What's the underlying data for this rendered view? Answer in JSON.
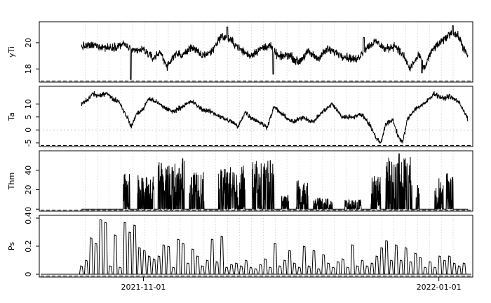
{
  "chart_data": [
    {
      "type": "line",
      "ylabel": "yTi",
      "ylim": [
        17.0,
        21.6
      ],
      "yticks": [
        18,
        20
      ],
      "x_range_days": [
        -21.5,
        68.0
      ],
      "hline": null,
      "color": "#000000",
      "anchors": [
        [
          -12.8,
          19.7
        ],
        [
          -10,
          19.8
        ],
        [
          -7,
          19.6
        ],
        [
          -4,
          19.9
        ],
        [
          -2,
          19.3
        ],
        [
          0,
          19.5
        ],
        [
          2,
          18.8
        ],
        [
          3.5,
          19.3
        ],
        [
          5,
          18.1
        ],
        [
          6.5,
          19.2
        ],
        [
          8,
          19.0
        ],
        [
          10,
          19.7
        ],
        [
          12,
          19.0
        ],
        [
          14,
          19.3
        ],
        [
          16,
          20.5
        ],
        [
          18,
          20.2
        ],
        [
          20,
          19.5
        ],
        [
          22,
          19.0
        ],
        [
          24,
          19.5
        ],
        [
          26,
          19.8
        ],
        [
          28,
          18.9
        ],
        [
          30,
          19.1
        ],
        [
          32,
          18.5
        ],
        [
          34,
          19.3
        ],
        [
          36,
          18.8
        ],
        [
          38,
          19.5
        ],
        [
          40,
          19.2
        ],
        [
          42,
          18.9
        ],
        [
          44,
          18.7
        ],
        [
          46,
          19.6
        ],
        [
          48,
          20.1
        ],
        [
          50,
          19.5
        ],
        [
          52,
          19.8
        ],
        [
          54,
          18.8
        ],
        [
          55,
          18.0
        ],
        [
          56,
          18.6
        ],
        [
          57,
          19.0
        ],
        [
          58,
          18.0
        ],
        [
          59,
          19.0
        ],
        [
          60,
          19.6
        ],
        [
          62,
          20.2
        ],
        [
          63.5,
          20.8
        ],
        [
          65,
          20.5
        ],
        [
          66,
          19.7
        ],
        [
          67,
          18.9
        ]
      ],
      "specials": [
        [
          -2.6,
          17.2
        ],
        [
          17.3,
          21.2
        ],
        [
          26.8,
          17.6
        ],
        [
          45.5,
          20.4
        ],
        [
          57.5,
          17.7
        ],
        [
          63.9,
          21.3
        ]
      ]
    },
    {
      "type": "line",
      "ylabel": "Ta",
      "ylim": [
        -6.4,
        16.8
      ],
      "yticks": [
        -5,
        0,
        5,
        10
      ],
      "x_range_days": [
        -21.5,
        68.0
      ],
      "hline": 0,
      "color": "#000000",
      "anchors": [
        [
          -12.8,
          10
        ],
        [
          -11.5,
          11.5
        ],
        [
          -10.5,
          14
        ],
        [
          -9,
          13
        ],
        [
          -7.5,
          14.5
        ],
        [
          -6.5,
          12
        ],
        [
          -5,
          11
        ],
        [
          -4,
          7
        ],
        [
          -3.2,
          4.5
        ],
        [
          -2.5,
          1
        ],
        [
          -1.5,
          6
        ],
        [
          0,
          8
        ],
        [
          1,
          12
        ],
        [
          2.5,
          11
        ],
        [
          4,
          9
        ],
        [
          6,
          7
        ],
        [
          8,
          9
        ],
        [
          10,
          11
        ],
        [
          12,
          8
        ],
        [
          14,
          7
        ],
        [
          16,
          5
        ],
        [
          17,
          4
        ],
        [
          18.5,
          3
        ],
        [
          19.5,
          1
        ],
        [
          21,
          7
        ],
        [
          22,
          5
        ],
        [
          24,
          3
        ],
        [
          25.5,
          1
        ],
        [
          27,
          9
        ],
        [
          28,
          7
        ],
        [
          30,
          4
        ],
        [
          31,
          3
        ],
        [
          33,
          5
        ],
        [
          35,
          3
        ],
        [
          37,
          7
        ],
        [
          39,
          10
        ],
        [
          41,
          5
        ],
        [
          43,
          5
        ],
        [
          45,
          6
        ],
        [
          46,
          4
        ],
        [
          47,
          1
        ],
        [
          48,
          -3
        ],
        [
          49,
          -5
        ],
        [
          50,
          2
        ],
        [
          51.5,
          4
        ],
        [
          52.5,
          -2
        ],
        [
          53.5,
          -5
        ],
        [
          54.5,
          4
        ],
        [
          56,
          8
        ],
        [
          58,
          10
        ],
        [
          60,
          14
        ],
        [
          62,
          12
        ],
        [
          63,
          13
        ],
        [
          65,
          11
        ],
        [
          66,
          8
        ],
        [
          67,
          4
        ]
      ]
    },
    {
      "type": "line",
      "ylabel": "Thm",
      "ylim": [
        -2.0,
        60.0
      ],
      "yticks": [
        0,
        20,
        40
      ],
      "x_range_days": [
        -21.5,
        68.0
      ],
      "hline": null,
      "color": "#000000",
      "bursts": [
        [
          -4.2,
          -2.8,
          40
        ],
        [
          -1.2,
          2.2,
          35
        ],
        [
          3,
          8.5,
          50
        ],
        [
          9.5,
          12.5,
          38
        ],
        [
          15.5,
          21,
          45
        ],
        [
          22.5,
          27,
          50
        ],
        [
          28.5,
          30,
          15
        ],
        [
          31.5,
          34,
          30
        ],
        [
          35,
          39,
          12
        ],
        [
          41.5,
          45,
          10
        ],
        [
          47,
          49,
          35
        ],
        [
          50,
          55.5,
          55
        ],
        [
          56.3,
          57,
          25
        ],
        [
          60,
          62,
          32
        ],
        [
          62.5,
          64,
          38
        ]
      ],
      "spikes": [
        [
          8.1,
          52
        ],
        [
          26.2,
          50
        ],
        [
          52.8,
          57
        ]
      ]
    },
    {
      "type": "bar",
      "ylabel": "Ps",
      "ylim": [
        -0.02,
        0.42
      ],
      "yticks": [
        0.0,
        0.2,
        0.4
      ],
      "x_range_days": [
        -21.5,
        68.0
      ],
      "hline": null,
      "color": "#000000",
      "bars": [
        [
          -12.8,
          0.06
        ],
        [
          -11.8,
          0.1
        ],
        [
          -10.8,
          0.26
        ],
        [
          -9.8,
          0.22
        ],
        [
          -8.8,
          0.39
        ],
        [
          -7.8,
          0.37
        ],
        [
          -6.8,
          0.06
        ],
        [
          -5.8,
          0.28
        ],
        [
          -4.8,
          0.05
        ],
        [
          -3.8,
          0.37
        ],
        [
          -2.8,
          0.3
        ],
        [
          -1.8,
          0.35
        ],
        [
          -0.8,
          0.19
        ],
        [
          0.2,
          0.17
        ],
        [
          1.2,
          0.13
        ],
        [
          2.2,
          0.11
        ],
        [
          3.2,
          0.13
        ],
        [
          4.2,
          0.21
        ],
        [
          5.2,
          0.2
        ],
        [
          6.2,
          0.05
        ],
        [
          7.2,
          0.25
        ],
        [
          8.2,
          0.22
        ],
        [
          9.2,
          0.08
        ],
        [
          10.2,
          0.18
        ],
        [
          11.2,
          0.13
        ],
        [
          12.2,
          0.06
        ],
        [
          13.2,
          0.1
        ],
        [
          14.2,
          0.25
        ],
        [
          15.2,
          0.09
        ],
        [
          16.2,
          0.27
        ],
        [
          17.2,
          0.05
        ],
        [
          18.2,
          0.07
        ],
        [
          19.2,
          0.08
        ],
        [
          20.2,
          0.06
        ],
        [
          21.2,
          0.1
        ],
        [
          22.2,
          0.05
        ],
        [
          23.2,
          0.04
        ],
        [
          24.2,
          0.07
        ],
        [
          25.2,
          0.11
        ],
        [
          26.2,
          0.05
        ],
        [
          27.2,
          0.22
        ],
        [
          28.2,
          0.06
        ],
        [
          29.2,
          0.1
        ],
        [
          30.2,
          0.17
        ],
        [
          31.2,
          0.08
        ],
        [
          32.2,
          0.05
        ],
        [
          33.2,
          0.2
        ],
        [
          34.2,
          0.06
        ],
        [
          35.2,
          0.17
        ],
        [
          36.2,
          0.04
        ],
        [
          37.2,
          0.14
        ],
        [
          38.2,
          0.08
        ],
        [
          39.2,
          0.05
        ],
        [
          40.2,
          0.09
        ],
        [
          41.2,
          0.11
        ],
        [
          42.2,
          0.05
        ],
        [
          43.2,
          0.21
        ],
        [
          44.2,
          0.06
        ],
        [
          45.2,
          0.1
        ],
        [
          46.2,
          0.06
        ],
        [
          47.2,
          0.08
        ],
        [
          48.2,
          0.13
        ],
        [
          49.2,
          0.19
        ],
        [
          50.2,
          0.24
        ],
        [
          51.2,
          0.1
        ],
        [
          52.2,
          0.21
        ],
        [
          53.2,
          0.1
        ],
        [
          54.2,
          0.19
        ],
        [
          55.2,
          0.09
        ],
        [
          56.2,
          0.15
        ],
        [
          57.2,
          0.12
        ],
        [
          58.2,
          0.05
        ],
        [
          59.2,
          0.09
        ],
        [
          60.2,
          0.05
        ],
        [
          61.2,
          0.13
        ],
        [
          62.2,
          0.1
        ],
        [
          63.2,
          0.13
        ],
        [
          64.2,
          0.08
        ],
        [
          65.2,
          0.06
        ],
        [
          66.2,
          0.08
        ]
      ]
    }
  ],
  "x_axis": {
    "labels": [
      "2021-11-01",
      "2022-01-01"
    ],
    "tick_days": [
      0,
      61
    ]
  }
}
